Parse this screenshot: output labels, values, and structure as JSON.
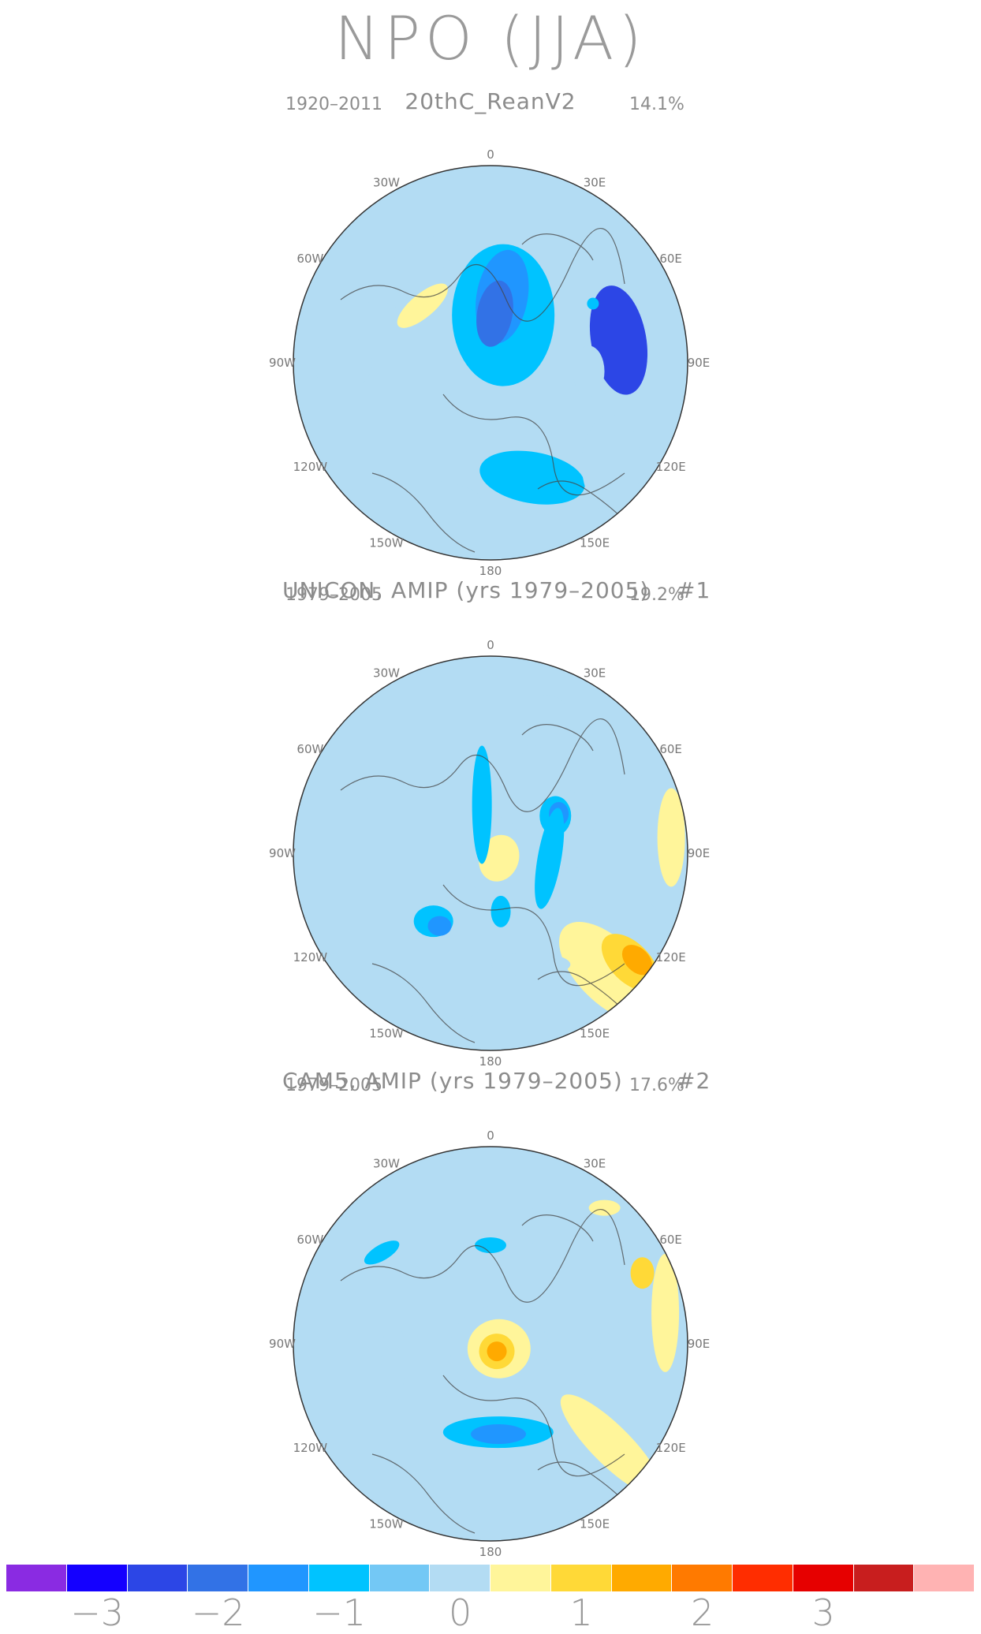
{
  "title": "NPO (JJA)",
  "panels": [
    {
      "title": "20thC_ReanV2",
      "number": "",
      "period": "1920–2011",
      "variance": "14.1%",
      "blobs": [
        {
          "lon": 80,
          "r": 0.66,
          "rx": 0.28,
          "ry": 0.14,
          "rot": 80,
          "level": 2
        },
        {
          "lon": 15,
          "r": 0.25,
          "rx": 0.26,
          "ry": 0.36,
          "rot": 0,
          "level": 5
        },
        {
          "lon": 10,
          "r": 0.34,
          "rx": 0.13,
          "ry": 0.24,
          "rot": 10,
          "level": 4
        },
        {
          "lon": 5,
          "r": 0.25,
          "rx": 0.09,
          "ry": 0.17,
          "rot": 10,
          "level": 3
        },
        {
          "lon": 160,
          "r": 0.62,
          "rx": 0.27,
          "ry": 0.13,
          "rot": 10,
          "level": 5
        },
        {
          "lon": -55,
          "r": 0.45,
          "rx": 0.12,
          "ry": 0.07,
          "rot": 0,
          "level": 7
        },
        {
          "lon": -40,
          "r": 0.62,
          "rx": 0.28,
          "ry": 0.1,
          "rot": -35,
          "level": 7
        },
        {
          "lon": -90,
          "r": 0.75,
          "rx": 0.15,
          "ry": 0.14,
          "rot": 0,
          "level": 7
        },
        {
          "lon": -150,
          "r": 0.8,
          "rx": 0.35,
          "ry": 0.1,
          "rot": 0,
          "level": 7
        },
        {
          "lon": 130,
          "r": 0.8,
          "rx": 0.15,
          "ry": 0.25,
          "rot": 0,
          "level": 7
        },
        {
          "lon": 95,
          "r": 0.5,
          "rx": 0.08,
          "ry": 0.13,
          "rot": 0,
          "level": 7
        },
        {
          "lon": 30,
          "r": 0.8,
          "rx": 0.12,
          "ry": 0.06,
          "rot": 30,
          "level": 7
        },
        {
          "lon": -50,
          "r": 0.45,
          "rx": 0.16,
          "ry": 0.06,
          "rot": -40,
          "level": 8
        },
        {
          "lon": 60,
          "r": 0.6,
          "rx": 0.03,
          "ry": 0.03,
          "rot": 0,
          "level": 5
        }
      ]
    },
    {
      "title": "UNICON, AMIP (yrs 1979–2005)",
      "number": "#1",
      "period": "1979–2005",
      "variance": "19.2%",
      "blobs": [
        {
          "lon": 120,
          "r": 0.75,
          "rx": 0.38,
          "ry": 0.2,
          "rot": 45,
          "level": 7
        },
        {
          "lon": 90,
          "r": 0.7,
          "rx": 0.2,
          "ry": 0.4,
          "rot": 10,
          "level": 7
        },
        {
          "lon": 135,
          "r": 0.85,
          "rx": 0.32,
          "ry": 0.16,
          "rot": 45,
          "level": 8
        },
        {
          "lon": 128,
          "r": 0.9,
          "rx": 0.18,
          "ry": 0.1,
          "rot": 45,
          "level": 9
        },
        {
          "lon": 126,
          "r": 0.92,
          "rx": 0.09,
          "ry": 0.06,
          "rot": 45,
          "level": 10
        },
        {
          "lon": 85,
          "r": 0.92,
          "rx": 0.07,
          "ry": 0.25,
          "rot": 0,
          "level": 8
        },
        {
          "lon": 120,
          "r": 0.0,
          "rx": 0.15,
          "ry": 0.19,
          "rot": 20,
          "level": 7
        },
        {
          "lon": 120,
          "r": 0.05,
          "rx": 0.1,
          "ry": 0.12,
          "rot": 20,
          "level": 8
        },
        {
          "lon": 40,
          "r": 0.55,
          "rx": 0.22,
          "ry": 0.07,
          "rot": 30,
          "level": 7
        },
        {
          "lon": 20,
          "r": 0.8,
          "rx": 0.1,
          "ry": 0.05,
          "rot": 0,
          "level": 7
        },
        {
          "lon": -65,
          "r": 0.75,
          "rx": 0.07,
          "ry": 0.07,
          "rot": 0,
          "level": 7
        },
        {
          "lon": -150,
          "r": 0.9,
          "rx": 0.4,
          "ry": 0.1,
          "rot": 0,
          "level": 7
        },
        {
          "lon": 160,
          "r": 0.6,
          "rx": 0.2,
          "ry": 0.06,
          "rot": 0,
          "level": 7
        },
        {
          "lon": -140,
          "r": 0.45,
          "rx": 0.1,
          "ry": 0.08,
          "rot": 0,
          "level": 5
        },
        {
          "lon": -145,
          "r": 0.45,
          "rx": 0.06,
          "ry": 0.05,
          "rot": 0,
          "level": 4
        },
        {
          "lon": 60,
          "r": 0.38,
          "rx": 0.08,
          "ry": 0.1,
          "rot": 0,
          "level": 5
        },
        {
          "lon": 60,
          "r": 0.4,
          "rx": 0.05,
          "ry": 0.06,
          "rot": 0,
          "level": 4
        },
        {
          "lon": 95,
          "r": 0.3,
          "rx": 0.06,
          "ry": 0.26,
          "rot": 10,
          "level": 5
        },
        {
          "lon": -10,
          "r": 0.25,
          "rx": 0.05,
          "ry": 0.3,
          "rot": 0,
          "level": 5
        },
        {
          "lon": 170,
          "r": 0.3,
          "rx": 0.05,
          "ry": 0.08,
          "rot": 0,
          "level": 5
        }
      ]
    },
    {
      "title": "CAM5, AMIP (yrs 1979–2005)",
      "number": "#2",
      "period": "1979–2005",
      "variance": "17.6%",
      "blobs": [
        {
          "lon": 160,
          "r": 0.7,
          "rx": 0.55,
          "ry": 0.2,
          "rot": 0,
          "level": 7
        },
        {
          "lon": 110,
          "r": 0.75,
          "rx": 0.25,
          "ry": 0.45,
          "rot": 20,
          "level": 7
        },
        {
          "lon": 40,
          "r": 0.7,
          "rx": 0.3,
          "ry": 0.15,
          "rot": 20,
          "level": 7
        },
        {
          "lon": 130,
          "r": 0.8,
          "rx": 0.35,
          "ry": 0.1,
          "rot": 45,
          "level": 8
        },
        {
          "lon": 80,
          "r": 0.9,
          "rx": 0.07,
          "ry": 0.3,
          "rot": 0,
          "level": 8
        },
        {
          "lon": 65,
          "r": 0.85,
          "rx": 0.06,
          "ry": 0.08,
          "rot": 0,
          "level": 9
        },
        {
          "lon": -100,
          "r": 0.5,
          "rx": 0.22,
          "ry": 0.06,
          "rot": 90,
          "level": 7
        },
        {
          "lon": 120,
          "r": 0.05,
          "rx": 0.25,
          "ry": 0.22,
          "rot": 0,
          "level": 7
        },
        {
          "lon": 120,
          "r": 0.05,
          "rx": 0.16,
          "ry": 0.15,
          "rot": 0,
          "level": 8
        },
        {
          "lon": 140,
          "r": 0.05,
          "rx": 0.09,
          "ry": 0.09,
          "rot": 20,
          "level": 9
        },
        {
          "lon": 140,
          "r": 0.05,
          "rx": 0.05,
          "ry": 0.05,
          "rot": 20,
          "level": 10
        },
        {
          "lon": 175,
          "r": 0.45,
          "rx": 0.28,
          "ry": 0.08,
          "rot": 0,
          "level": 5
        },
        {
          "lon": 175,
          "r": 0.46,
          "rx": 0.14,
          "ry": 0.05,
          "rot": 0,
          "level": 4
        },
        {
          "lon": -50,
          "r": 0.72,
          "rx": 0.1,
          "ry": 0.04,
          "rot": -30,
          "level": 5
        },
        {
          "lon": 0,
          "r": 0.5,
          "rx": 0.08,
          "ry": 0.04,
          "rot": 0,
          "level": 5
        },
        {
          "lon": 40,
          "r": 0.9,
          "rx": 0.08,
          "ry": 0.04,
          "rot": 0,
          "level": 8
        }
      ]
    }
  ],
  "lon_labels": [
    "180",
    "150E",
    "120E",
    "90E",
    "60E",
    "30E",
    "0",
    "30W",
    "60W",
    "90W",
    "120W",
    "150W"
  ],
  "colorbar": {
    "colors": [
      "#8a2be2",
      "#1400ff",
      "#2c46e6",
      "#3272e6",
      "#2096ff",
      "#00c3ff",
      "#73c8f5",
      "#b3dcf3",
      "#fff59a",
      "#ffd937",
      "#ffaa00",
      "#ff7a00",
      "#ff2d00",
      "#e60000",
      "#c81e1e",
      "#ffb3b3"
    ],
    "ticks": [
      {
        "value": -3,
        "label": "−3"
      },
      {
        "value": -2,
        "label": "−2"
      },
      {
        "value": -1,
        "label": "−1"
      },
      {
        "value": 0,
        "label": "0"
      },
      {
        "value": 1,
        "label": "1"
      },
      {
        "value": 2,
        "label": "2"
      },
      {
        "value": 3,
        "label": "3"
      }
    ]
  }
}
